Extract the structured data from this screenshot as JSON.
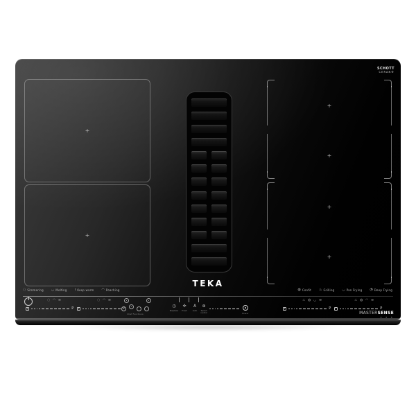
{
  "brand": {
    "logo": "TEKA",
    "glass_brand_line1": "SCHOTT",
    "glass_brand_line2": "CERAN®",
    "series_light": "MASTER",
    "series_bold": "SENSE",
    "series_dots": "• • •"
  },
  "zones": {
    "left": [
      {
        "marker": "+"
      },
      {
        "marker": "+"
      }
    ],
    "right": [
      {
        "marker": "+"
      },
      {
        "marker": "+"
      },
      {
        "marker": "+"
      },
      {
        "marker": "+"
      }
    ]
  },
  "chef_functions": {
    "left": [
      {
        "glyph": "◌",
        "label": "Simmering"
      },
      {
        "glyph": "◡",
        "label": "Melting"
      },
      {
        "glyph": "≀",
        "label": "Keep warm"
      },
      {
        "glyph": "◠",
        "label": "Poaching"
      }
    ],
    "right": [
      {
        "glyph": "◍",
        "label": "Confit"
      },
      {
        "glyph": "♨",
        "label": "Grilling"
      },
      {
        "glyph": "◡",
        "label": "Pan Frying"
      },
      {
        "glyph": "◔",
        "label": "Deep Frying"
      }
    ]
  },
  "controls": {
    "left": {
      "cookware_icons_1": "◌ ◠ ≋",
      "cookware_icons_2": "◌ ◠ ≋",
      "slider_end": "P",
      "cluster_label": "Chef Functions"
    },
    "hood": {
      "keys": [
        {
          "glyph": "◷",
          "label": "Stop&Go"
        },
        {
          "glyph": "✣",
          "label": "Fresh"
        },
        {
          "glyph": "A",
          "label": "Auto"
        },
        {
          "glyph": "⊛",
          "label": "Speed control"
        }
      ],
      "power_label": "Power"
    },
    "right": {
      "cookware_icons_1": "♨ ◍ ◡ ≋",
      "cookware_icons_2": "♨ ◍ ◠ ≋",
      "slider_end": "P"
    }
  }
}
